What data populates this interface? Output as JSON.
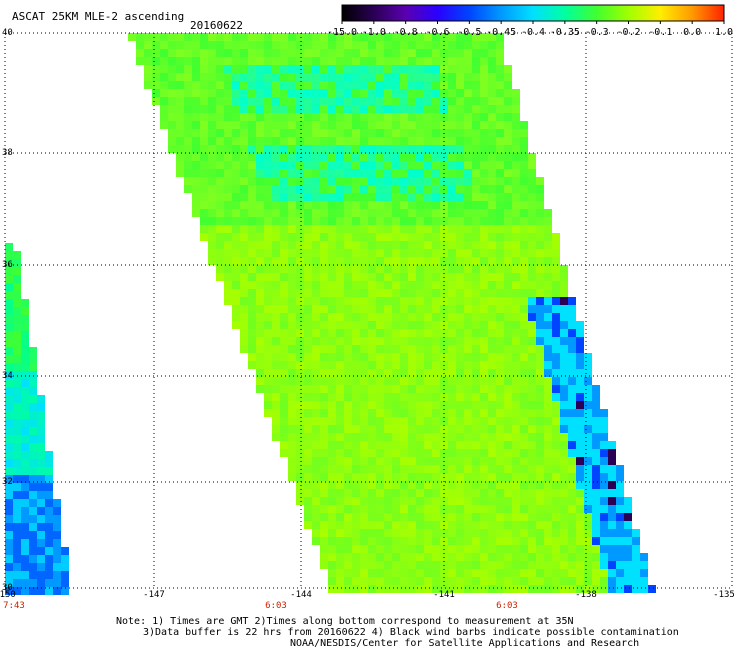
{
  "header": {
    "title": "ASCAT 25KM MLE-2 ascending",
    "date": "20160622"
  },
  "colorbar": {
    "labels": [
      "-15.0",
      "-1.0",
      "-0.8",
      "-0.6",
      "-0.5",
      "-0.45",
      "-0.4",
      "-0.35",
      "-0.3",
      "-0.2",
      "-0.1",
      "0.0",
      "1.0"
    ],
    "colors": [
      "#000000",
      "#2a0055",
      "#5a00b0",
      "#2a00ff",
      "#0044ff",
      "#0099ff",
      "#00e0ff",
      "#00ffa0",
      "#40ff30",
      "#a0ff00",
      "#ffee00",
      "#ff9900",
      "#ff2200"
    ]
  },
  "map": {
    "lat_labels": [
      "40",
      "38",
      "36",
      "34",
      "32",
      "30"
    ],
    "lon_labels": [
      "-150",
      "-147",
      "-144",
      "-141",
      "-138",
      "-135"
    ],
    "time_labels": [
      "7:43",
      "6:03",
      "6:03"
    ],
    "lat_range": [
      30,
      40
    ],
    "lon_range": [
      -150,
      -135
    ]
  },
  "notes": {
    "line1": "Note: 1) Times are GMT 2)Times along bottom correspond to measurement at 35N",
    "line2": "3)Data buffer is 22 hrs from 20160622 4) Black wind barbs indicate possible contamination",
    "line3": "NOAA/NESDIS/Center for Satellite Applications and Research"
  }
}
